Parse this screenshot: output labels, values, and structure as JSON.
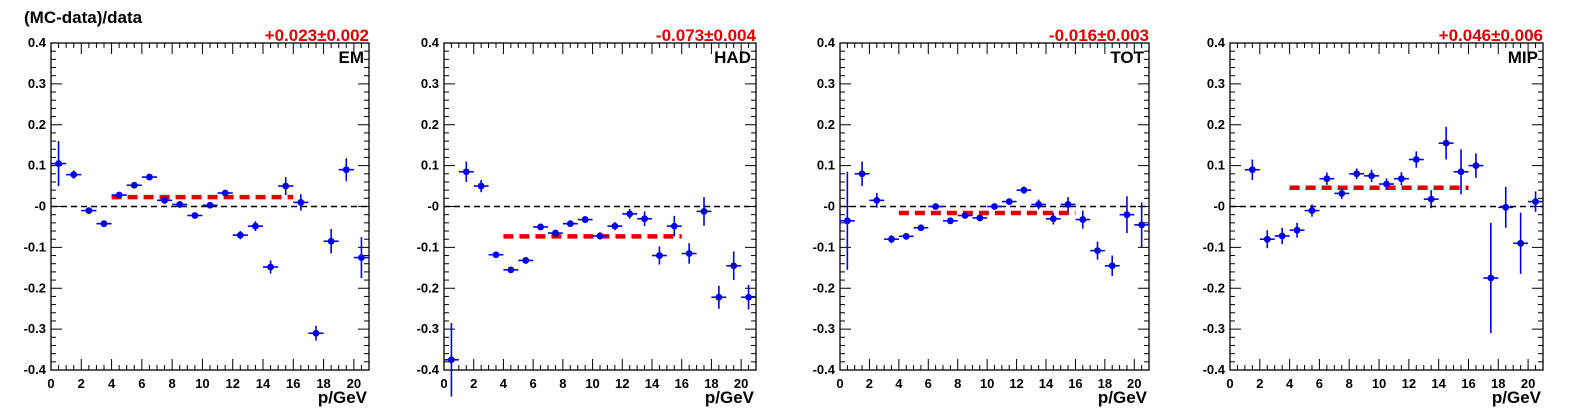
{
  "figure": {
    "ylabel": "(MC-data)/data",
    "xlabel": "p/GeV"
  },
  "colors": {
    "points": "#0000e6",
    "fit": "#e00000",
    "zero_line": "#000000",
    "axes": "#000000"
  },
  "chart_data": [
    {
      "type": "scatter",
      "label": "EM",
      "fit_value": "+0.023±0.002",
      "fit_level": 0.023,
      "fit_range": [
        4,
        16
      ],
      "xlim": [
        0,
        21
      ],
      "ylim": [
        -0.4,
        0.4
      ],
      "xticks": [
        0,
        2,
        4,
        6,
        8,
        10,
        12,
        14,
        16,
        18,
        20
      ],
      "yticks": [
        -0.4,
        -0.3,
        -0.2,
        -0.1,
        0,
        0.1,
        0.2,
        0.3,
        0.4
      ],
      "ytick_labels": [
        "-0.4",
        "-0.3",
        "-0.2",
        "-0.1",
        "-0",
        "0.1",
        "0.2",
        "0.3",
        "0.4"
      ],
      "points": [
        {
          "x": 0.5,
          "y": 0.105,
          "ey": 0.055
        },
        {
          "x": 1.5,
          "y": 0.078,
          "ey": 0.01
        },
        {
          "x": 2.5,
          "y": -0.01,
          "ey": 0.006
        },
        {
          "x": 3.5,
          "y": -0.042,
          "ey": 0.004
        },
        {
          "x": 4.5,
          "y": 0.028,
          "ey": 0.004
        },
        {
          "x": 5.5,
          "y": 0.052,
          "ey": 0.004
        },
        {
          "x": 6.5,
          "y": 0.072,
          "ey": 0.004
        },
        {
          "x": 7.5,
          "y": 0.015,
          "ey": 0.004
        },
        {
          "x": 8.5,
          "y": 0.005,
          "ey": 0.004
        },
        {
          "x": 9.5,
          "y": -0.022,
          "ey": 0.004
        },
        {
          "x": 10.5,
          "y": 0.003,
          "ey": 0.006
        },
        {
          "x": 11.5,
          "y": 0.033,
          "ey": 0.007
        },
        {
          "x": 12.5,
          "y": -0.07,
          "ey": 0.01
        },
        {
          "x": 13.5,
          "y": -0.048,
          "ey": 0.012
        },
        {
          "x": 14.5,
          "y": -0.148,
          "ey": 0.016
        },
        {
          "x": 15.5,
          "y": 0.05,
          "ey": 0.022
        },
        {
          "x": 16.5,
          "y": 0.01,
          "ey": 0.02
        },
        {
          "x": 17.5,
          "y": -0.31,
          "ey": 0.018
        },
        {
          "x": 18.5,
          "y": -0.085,
          "ey": 0.03
        },
        {
          "x": 19.5,
          "y": 0.09,
          "ey": 0.028
        },
        {
          "x": 20.5,
          "y": -0.125,
          "ey": 0.05
        }
      ]
    },
    {
      "type": "scatter",
      "label": "HAD",
      "fit_value": "-0.073±0.004",
      "fit_level": -0.073,
      "fit_range": [
        4,
        16
      ],
      "xlim": [
        0,
        21
      ],
      "ylim": [
        -0.4,
        0.4
      ],
      "xticks": [
        0,
        2,
        4,
        6,
        8,
        10,
        12,
        14,
        16,
        18,
        20
      ],
      "yticks": [
        -0.4,
        -0.3,
        -0.2,
        -0.1,
        0,
        0.1,
        0.2,
        0.3,
        0.4
      ],
      "ytick_labels": [
        "-0.4",
        "-0.3",
        "-0.2",
        "-0.1",
        "-0",
        "0.1",
        "0.2",
        "0.3",
        "0.4"
      ],
      "points": [
        {
          "x": 0.5,
          "y": -0.375,
          "ey": 0.09
        },
        {
          "x": 1.5,
          "y": 0.085,
          "ey": 0.025
        },
        {
          "x": 2.5,
          "y": 0.05,
          "ey": 0.015
        },
        {
          "x": 3.5,
          "y": -0.118,
          "ey": 0.008
        },
        {
          "x": 4.5,
          "y": -0.155,
          "ey": 0.005
        },
        {
          "x": 5.5,
          "y": -0.132,
          "ey": 0.005
        },
        {
          "x": 6.5,
          "y": -0.05,
          "ey": 0.005
        },
        {
          "x": 7.5,
          "y": -0.065,
          "ey": 0.006
        },
        {
          "x": 8.5,
          "y": -0.042,
          "ey": 0.007
        },
        {
          "x": 9.5,
          "y": -0.032,
          "ey": 0.008
        },
        {
          "x": 10.5,
          "y": -0.072,
          "ey": 0.009
        },
        {
          "x": 11.5,
          "y": -0.048,
          "ey": 0.01
        },
        {
          "x": 12.5,
          "y": -0.018,
          "ey": 0.012
        },
        {
          "x": 13.5,
          "y": -0.03,
          "ey": 0.018
        },
        {
          "x": 14.5,
          "y": -0.12,
          "ey": 0.022
        },
        {
          "x": 15.5,
          "y": -0.048,
          "ey": 0.025
        },
        {
          "x": 16.5,
          "y": -0.115,
          "ey": 0.025
        },
        {
          "x": 17.5,
          "y": -0.012,
          "ey": 0.035
        },
        {
          "x": 18.5,
          "y": -0.222,
          "ey": 0.028
        },
        {
          "x": 19.5,
          "y": -0.145,
          "ey": 0.035
        },
        {
          "x": 20.5,
          "y": -0.222,
          "ey": 0.03
        }
      ]
    },
    {
      "type": "scatter",
      "label": "TOT",
      "fit_value": "-0.016±0.003",
      "fit_level": -0.016,
      "fit_range": [
        4,
        16
      ],
      "xlim": [
        0,
        21
      ],
      "ylim": [
        -0.4,
        0.4
      ],
      "xticks": [
        0,
        2,
        4,
        6,
        8,
        10,
        12,
        14,
        16,
        18,
        20
      ],
      "yticks": [
        -0.4,
        -0.3,
        -0.2,
        -0.1,
        0,
        0.1,
        0.2,
        0.3,
        0.4
      ],
      "ytick_labels": [
        "-0.4",
        "-0.3",
        "-0.2",
        "-0.1",
        "-0",
        "0.1",
        "0.2",
        "0.3",
        "0.4"
      ],
      "points": [
        {
          "x": 0.5,
          "y": -0.035,
          "ey": 0.12
        },
        {
          "x": 1.5,
          "y": 0.08,
          "ey": 0.03
        },
        {
          "x": 2.5,
          "y": 0.015,
          "ey": 0.018
        },
        {
          "x": 3.5,
          "y": -0.08,
          "ey": 0.01
        },
        {
          "x": 4.5,
          "y": -0.073,
          "ey": 0.008
        },
        {
          "x": 5.5,
          "y": -0.052,
          "ey": 0.006
        },
        {
          "x": 6.5,
          "y": 0.0,
          "ey": 0.005
        },
        {
          "x": 7.5,
          "y": -0.035,
          "ey": 0.006
        },
        {
          "x": 8.5,
          "y": -0.022,
          "ey": 0.006
        },
        {
          "x": 9.5,
          "y": -0.028,
          "ey": 0.006
        },
        {
          "x": 10.5,
          "y": 0.0,
          "ey": 0.006
        },
        {
          "x": 11.5,
          "y": 0.012,
          "ey": 0.007
        },
        {
          "x": 12.5,
          "y": 0.04,
          "ey": 0.009
        },
        {
          "x": 13.5,
          "y": 0.005,
          "ey": 0.012
        },
        {
          "x": 14.5,
          "y": -0.03,
          "ey": 0.014
        },
        {
          "x": 15.5,
          "y": 0.005,
          "ey": 0.018
        },
        {
          "x": 16.5,
          "y": -0.032,
          "ey": 0.022
        },
        {
          "x": 17.5,
          "y": -0.108,
          "ey": 0.022
        },
        {
          "x": 18.5,
          "y": -0.145,
          "ey": 0.025
        },
        {
          "x": 19.5,
          "y": -0.02,
          "ey": 0.045
        },
        {
          "x": 20.5,
          "y": -0.045,
          "ey": 0.055
        }
      ]
    },
    {
      "type": "scatter",
      "label": "MIP",
      "fit_value": "+0.046±0.006",
      "fit_level": 0.046,
      "fit_range": [
        4,
        16
      ],
      "xlim": [
        0,
        21
      ],
      "ylim": [
        -0.4,
        0.4
      ],
      "xticks": [
        0,
        2,
        4,
        6,
        8,
        10,
        12,
        14,
        16,
        18,
        20
      ],
      "yticks": [
        -0.4,
        -0.3,
        -0.2,
        -0.1,
        0,
        0.1,
        0.2,
        0.3,
        0.4
      ],
      "ytick_labels": [
        "-0.4",
        "-0.3",
        "-0.2",
        "-0.1",
        "-0",
        "0.1",
        "0.2",
        "0.3",
        "0.4"
      ],
      "points": [
        {
          "x": 1.5,
          "y": 0.09,
          "ey": 0.025
        },
        {
          "x": 2.5,
          "y": -0.08,
          "ey": 0.022
        },
        {
          "x": 3.5,
          "y": -0.072,
          "ey": 0.02
        },
        {
          "x": 4.5,
          "y": -0.058,
          "ey": 0.018
        },
        {
          "x": 5.5,
          "y": -0.01,
          "ey": 0.015
        },
        {
          "x": 6.5,
          "y": 0.068,
          "ey": 0.015
        },
        {
          "x": 7.5,
          "y": 0.032,
          "ey": 0.014
        },
        {
          "x": 8.5,
          "y": 0.08,
          "ey": 0.013
        },
        {
          "x": 9.5,
          "y": 0.075,
          "ey": 0.015
        },
        {
          "x": 10.5,
          "y": 0.055,
          "ey": 0.014
        },
        {
          "x": 11.5,
          "y": 0.068,
          "ey": 0.016
        },
        {
          "x": 12.5,
          "y": 0.115,
          "ey": 0.02
        },
        {
          "x": 13.5,
          "y": 0.018,
          "ey": 0.022
        },
        {
          "x": 14.5,
          "y": 0.155,
          "ey": 0.04
        },
        {
          "x": 15.5,
          "y": 0.085,
          "ey": 0.055
        },
        {
          "x": 16.5,
          "y": 0.1,
          "ey": 0.03
        },
        {
          "x": 17.5,
          "y": -0.175,
          "ey": 0.135
        },
        {
          "x": 18.5,
          "y": -0.002,
          "ey": 0.05
        },
        {
          "x": 19.5,
          "y": -0.09,
          "ey": 0.075
        },
        {
          "x": 20.5,
          "y": 0.012,
          "ey": 0.025
        }
      ]
    }
  ]
}
